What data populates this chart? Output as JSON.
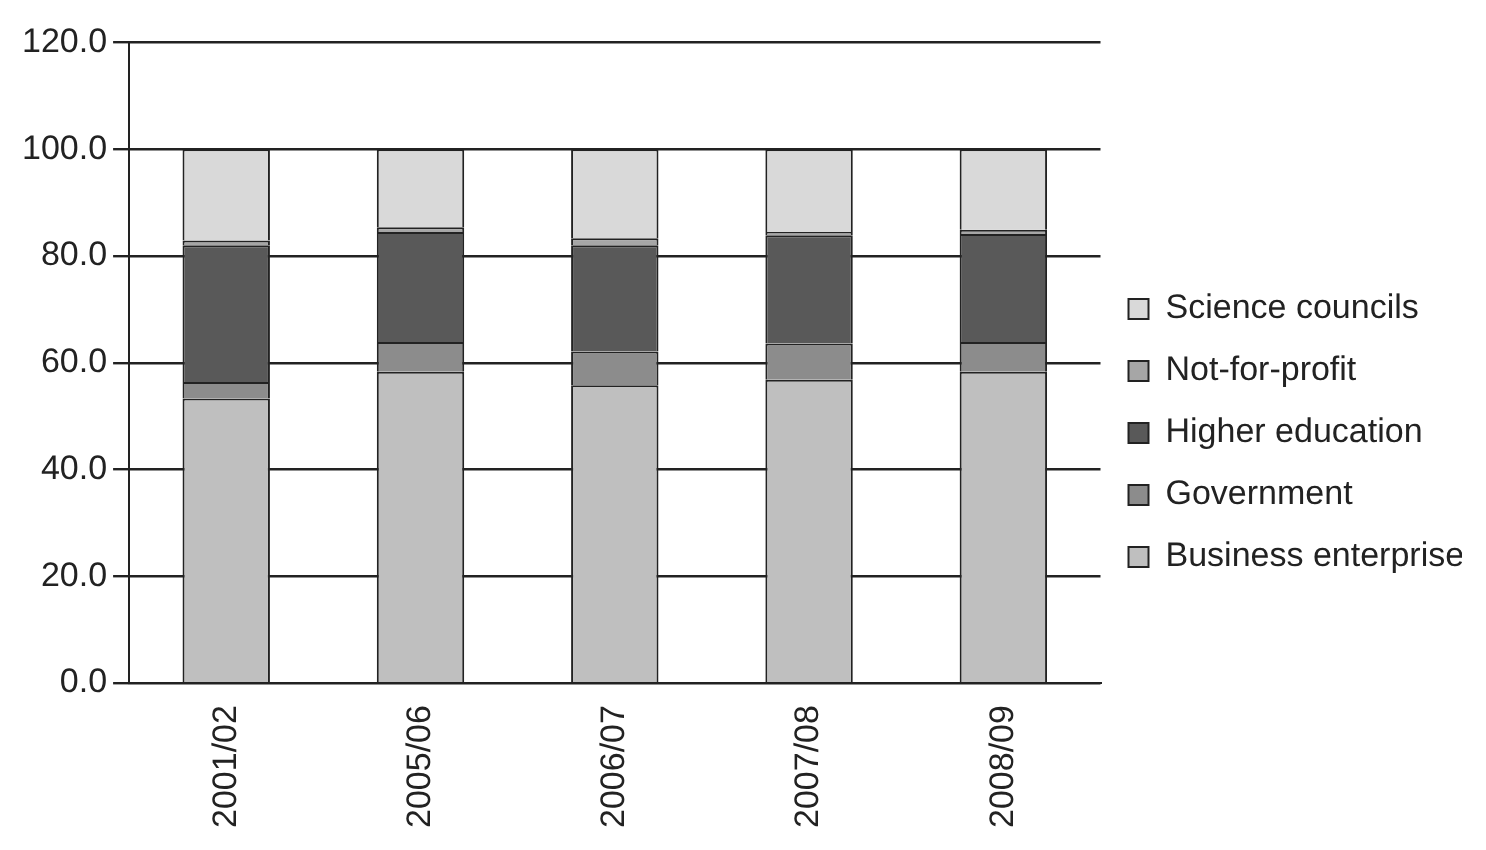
{
  "chart_data": {
    "type": "bar",
    "stacked": true,
    "categories": [
      "2001/02",
      "2005/06",
      "2006/07",
      "2007/08",
      "2008/09"
    ],
    "series": [
      {
        "name": "Business enterprise",
        "color": "#bfbfbf",
        "values": [
          53.3,
          58.3,
          55.8,
          56.8,
          58.3
        ]
      },
      {
        "name": "Government",
        "color": "#8c8c8c",
        "values": [
          3.1,
          5.6,
          6.3,
          6.8,
          5.6
        ]
      },
      {
        "name": "Higher education",
        "color": "#595959",
        "values": [
          25.6,
          20.6,
          19.9,
          20.3,
          20.2
        ]
      },
      {
        "name": "Not-for-profit",
        "color": "#a6a6a6",
        "values": [
          0.9,
          0.9,
          1.3,
          0.6,
          0.8
        ]
      },
      {
        "name": "Science councils",
        "color": "#d9d9d9",
        "values": [
          17.1,
          14.6,
          16.7,
          15.5,
          15.1
        ]
      }
    ],
    "ylim": [
      0,
      120
    ],
    "yticks": [
      {
        "value": 0,
        "label": "0.0"
      },
      {
        "value": 20,
        "label": "20.0"
      },
      {
        "value": 40,
        "label": "40.0"
      },
      {
        "value": 60,
        "label": "60.0"
      },
      {
        "value": 80,
        "label": "80.0"
      },
      {
        "value": 100,
        "label": "100.0"
      },
      {
        "value": 120,
        "label": "120.0"
      }
    ],
    "grid": "y",
    "legend": "right"
  }
}
